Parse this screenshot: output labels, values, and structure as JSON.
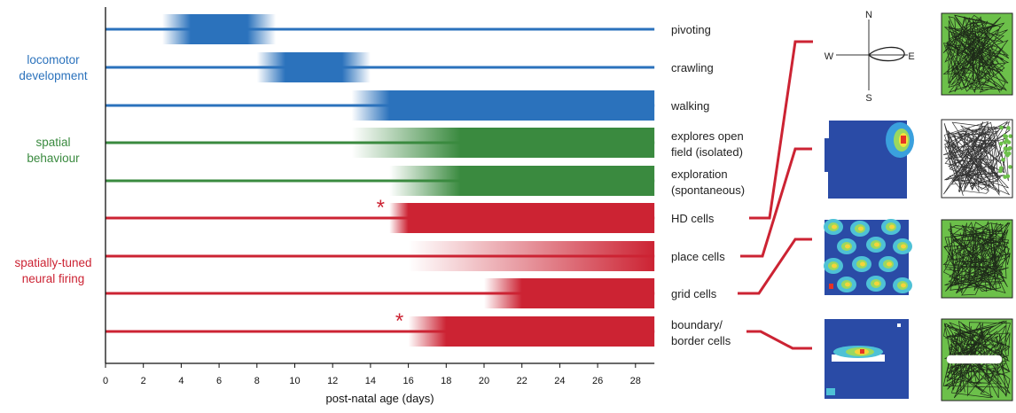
{
  "chart_data": {
    "type": "timeline",
    "xlabel": "post-natal age (days)",
    "xlim": [
      0,
      29
    ],
    "x_ticks": [
      0,
      2,
      4,
      6,
      8,
      10,
      12,
      14,
      16,
      18,
      20,
      22,
      24,
      26,
      28
    ],
    "groups": [
      {
        "label": [
          "locomotor",
          "development"
        ],
        "color": "#2b72bc"
      },
      {
        "label": [
          "spatial",
          "behaviour"
        ],
        "color": "#3a8a3f"
      },
      {
        "label": [
          "spatially-tuned",
          "neural firing"
        ],
        "color": "#cc2333"
      }
    ],
    "rows": [
      {
        "label": [
          "pivoting"
        ],
        "color": "#2b72bc",
        "fade_start": 3,
        "solid_start": 4.5,
        "solid_end": 7.5,
        "fade_end": 9,
        "star": false
      },
      {
        "label": [
          "crawling"
        ],
        "color": "#2b72bc",
        "fade_start": 8,
        "solid_start": 9.5,
        "solid_end": 12.5,
        "fade_end": 14,
        "star": false
      },
      {
        "label": [
          "walking"
        ],
        "color": "#2b72bc",
        "fade_start": 13,
        "solid_start": 15,
        "solid_end": 29,
        "fade_end": 29,
        "star": false
      },
      {
        "label": [
          "explores open",
          "field (isolated)"
        ],
        "color": "#3a8a3f",
        "fade_start": 13,
        "solid_start": 18.75,
        "solid_end": 29,
        "fade_end": 29,
        "star": false
      },
      {
        "label": [
          "exploration",
          "(spontaneous)"
        ],
        "color": "#3a8a3f",
        "fade_start": 15,
        "solid_start": 18.75,
        "solid_end": 29,
        "fade_end": 29,
        "star": false
      },
      {
        "label": [
          "HD cells"
        ],
        "color": "#cc2333",
        "fade_start": 15,
        "solid_start": 16,
        "solid_end": 29,
        "fade_end": 29,
        "star": true
      },
      {
        "label": [
          "place cells"
        ],
        "color": "#cc2333",
        "fade_start": 16,
        "solid_start": 29,
        "solid_end": 29,
        "fade_end": 29,
        "star": false
      },
      {
        "label": [
          "grid cells"
        ],
        "color": "#cc2333",
        "fade_start": 20,
        "solid_start": 22,
        "solid_end": 29,
        "fade_end": 29,
        "star": false
      },
      {
        "label": [
          "boundary/",
          "border cells"
        ],
        "color": "#cc2333",
        "fade_start": 16,
        "solid_start": 18,
        "solid_end": 29,
        "fade_end": 29,
        "star": true
      }
    ],
    "polar_plot": {
      "labels": {
        "north": "N",
        "south": "S",
        "west": "W",
        "east": "E"
      }
    },
    "rate_maps": [
      "HD cells",
      "place cells",
      "grid cells",
      "boundary/ border cells"
    ],
    "star_symbol": "*",
    "colors": {
      "blue": "#2b72bc",
      "green": "#3a8a3f",
      "red": "#cc2333",
      "trail_green": "#6cc04a"
    }
  }
}
